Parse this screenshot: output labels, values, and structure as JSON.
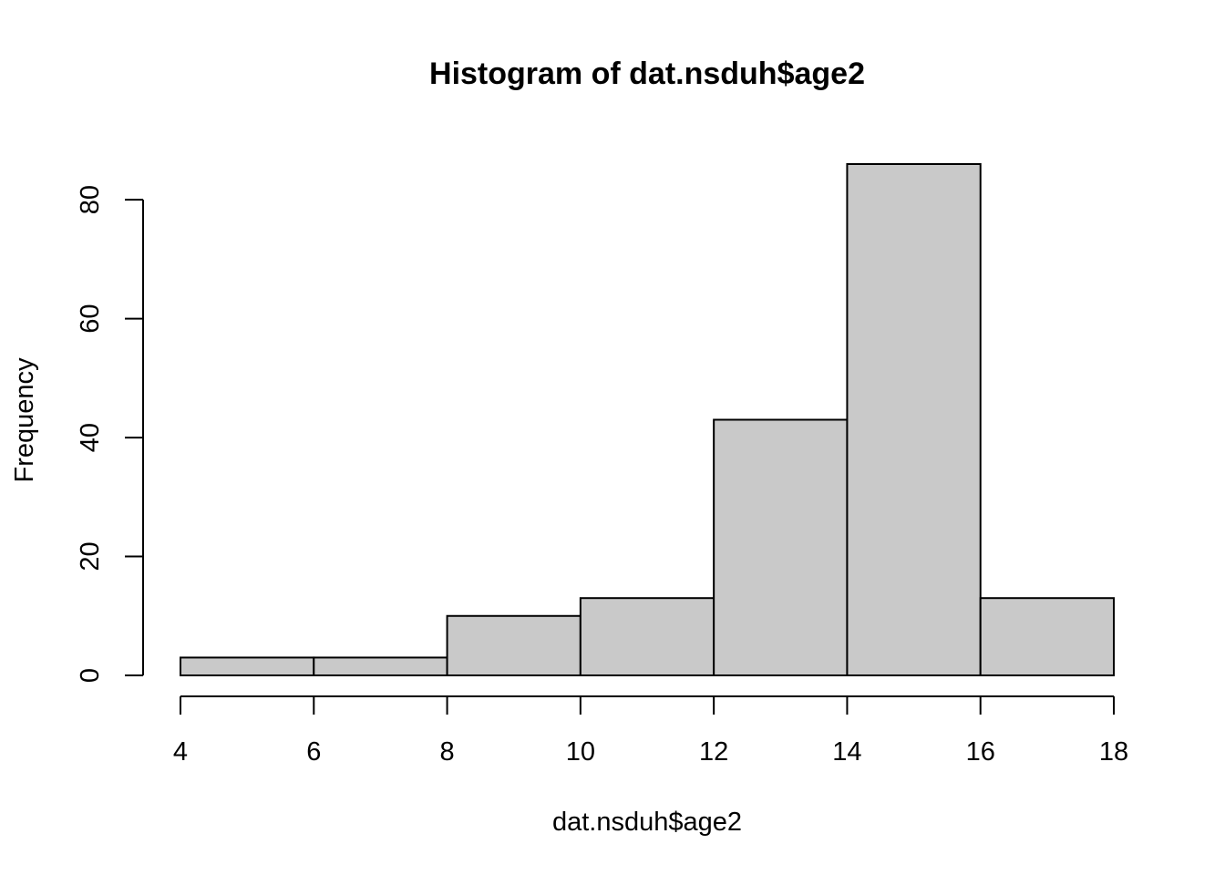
{
  "chart_data": {
    "type": "bar",
    "subtype": "histogram",
    "title": "Histogram of dat.nsduh$age2",
    "xlabel": "dat.nsduh$age2",
    "ylabel": "Frequency",
    "bins": [
      {
        "from": 4,
        "to": 6,
        "count": 3
      },
      {
        "from": 6,
        "to": 8,
        "count": 3
      },
      {
        "from": 8,
        "to": 10,
        "count": 10
      },
      {
        "from": 10,
        "to": 12,
        "count": 13
      },
      {
        "from": 12,
        "to": 14,
        "count": 43
      },
      {
        "from": 14,
        "to": 16,
        "count": 86
      },
      {
        "from": 16,
        "to": 18,
        "count": 13
      }
    ],
    "xlim": [
      4,
      18
    ],
    "ylim": [
      0,
      86
    ],
    "xticks": [
      4,
      6,
      8,
      10,
      12,
      14,
      16,
      18
    ],
    "yticks": [
      0,
      20,
      40,
      60,
      80
    ],
    "colors": {
      "bar_fill": "#c9c9c9",
      "bar_stroke": "#000000"
    }
  }
}
